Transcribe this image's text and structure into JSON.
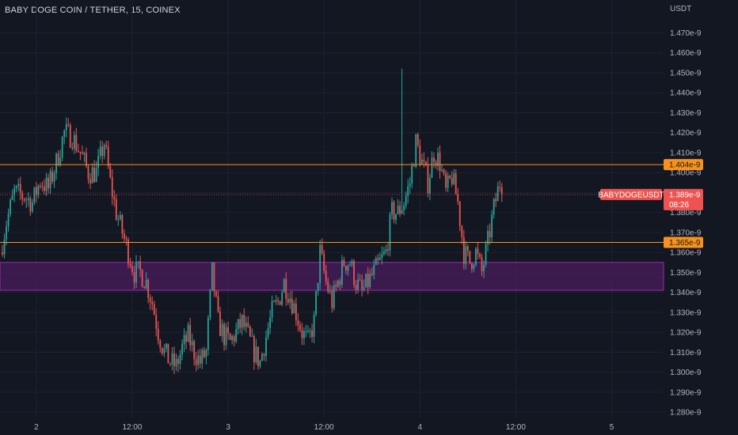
{
  "header": {
    "symbol_title": "BABY DOGE COIN / TETHER, 15, COINEX"
  },
  "axis": {
    "unit": "USDT"
  },
  "colors": {
    "background": "#131722",
    "up": "#26a69a",
    "down": "#ef5350",
    "level_line": "#f7931a",
    "zone_fill": "#4a1d5e",
    "zone_border": "#9c27b0",
    "grid": "#1e2230",
    "price_label_bg": "#ef5350"
  },
  "chart_data": {
    "type": "candlestick",
    "title": "BABY DOGE COIN / TETHER, 15, COINEX",
    "y_unit": "USDT",
    "y_ticks": [
      "1.280e-9",
      "1.290e-9",
      "1.300e-9",
      "1.310e-9",
      "1.320e-9",
      "1.330e-9",
      "1.340e-9",
      "1.350e-9",
      "1.360e-9",
      "1.370e-9",
      "1.380e-9",
      "1.390e-9",
      "1.400e-9",
      "1.410e-9",
      "1.420e-9",
      "1.430e-9",
      "1.440e-9",
      "1.450e-9",
      "1.460e-9",
      "1.470e-9"
    ],
    "y_tick_values": [
      1.28,
      1.29,
      1.3,
      1.31,
      1.32,
      1.33,
      1.34,
      1.35,
      1.36,
      1.37,
      1.38,
      1.39,
      1.4,
      1.41,
      1.42,
      1.43,
      1.44,
      1.45,
      1.46,
      1.47
    ],
    "x_ticks": [
      {
        "label": "2",
        "index": 17
      },
      {
        "label": "12:00",
        "index": 65
      },
      {
        "label": "3",
        "index": 113
      },
      {
        "label": "12:00",
        "index": 161
      },
      {
        "label": "4",
        "index": 209
      },
      {
        "label": "12:00",
        "index": 257
      },
      {
        "label": "5",
        "index": 305
      }
    ],
    "anchors": [
      [
        0,
        1.36
      ],
      [
        3,
        1.375
      ],
      [
        7,
        1.39
      ],
      [
        12,
        1.388
      ],
      [
        16,
        1.385
      ],
      [
        20,
        1.396
      ],
      [
        24,
        1.392
      ],
      [
        28,
        1.405
      ],
      [
        32,
        1.42
      ],
      [
        36,
        1.418
      ],
      [
        40,
        1.41
      ],
      [
        44,
        1.4
      ],
      [
        48,
        1.4
      ],
      [
        52,
        1.415
      ],
      [
        55,
        1.395
      ],
      [
        58,
        1.38
      ],
      [
        61,
        1.37
      ],
      [
        64,
        1.36
      ],
      [
        67,
        1.35
      ],
      [
        70,
        1.35
      ],
      [
        73,
        1.345
      ],
      [
        76,
        1.335
      ],
      [
        79,
        1.32
      ],
      [
        82,
        1.31
      ],
      [
        85,
        1.305
      ],
      [
        88,
        1.303
      ],
      [
        91,
        1.312
      ],
      [
        94,
        1.318
      ],
      [
        97,
        1.31
      ],
      [
        100,
        1.305
      ],
      [
        103,
        1.31
      ],
      [
        106,
        1.35
      ],
      [
        109,
        1.325
      ],
      [
        112,
        1.318
      ],
      [
        115,
        1.315
      ],
      [
        118,
        1.32
      ],
      [
        121,
        1.325
      ],
      [
        124,
        1.318
      ],
      [
        127,
        1.31
      ],
      [
        130,
        1.305
      ],
      [
        133,
        1.318
      ],
      [
        136,
        1.33
      ],
      [
        139,
        1.335
      ],
      [
        142,
        1.345
      ],
      [
        145,
        1.338
      ],
      [
        148,
        1.33
      ],
      [
        151,
        1.32
      ],
      [
        154,
        1.315
      ],
      [
        157,
        1.325
      ],
      [
        160,
        1.36
      ],
      [
        163,
        1.345
      ],
      [
        166,
        1.335
      ],
      [
        169,
        1.345
      ],
      [
        172,
        1.355
      ],
      [
        175,
        1.355
      ],
      [
        178,
        1.345
      ],
      [
        181,
        1.34
      ],
      [
        184,
        1.345
      ],
      [
        187,
        1.35
      ],
      [
        190,
        1.355
      ],
      [
        193,
        1.36
      ],
      [
        196,
        1.38
      ],
      [
        199,
        1.38
      ],
      [
        202,
        1.385
      ],
      [
        205,
        1.395
      ],
      [
        208,
        1.415
      ],
      [
        211,
        1.405
      ],
      [
        214,
        1.395
      ],
      [
        217,
        1.41
      ],
      [
        220,
        1.405
      ],
      [
        223,
        1.39
      ],
      [
        226,
        1.398
      ],
      [
        229,
        1.385
      ],
      [
        232,
        1.36
      ],
      [
        235,
        1.355
      ],
      [
        238,
        1.36
      ],
      [
        241,
        1.35
      ],
      [
        244,
        1.365
      ],
      [
        247,
        1.382
      ],
      [
        250,
        1.395
      ]
    ],
    "high": 1.452,
    "low": 1.3,
    "candle_count": 251,
    "last_price": "1.389e-9",
    "last_price_value": 1.389,
    "countdown": "08:26",
    "symbol_label": "BABYDOGEUSDT",
    "horizontal_levels": [
      {
        "label": "1.404e-9",
        "value": 1.404
      },
      {
        "label": "1.365e-9",
        "value": 1.365
      }
    ],
    "zone": {
      "from": 1.341,
      "to": 1.355
    },
    "grid": true,
    "legend": "none"
  }
}
